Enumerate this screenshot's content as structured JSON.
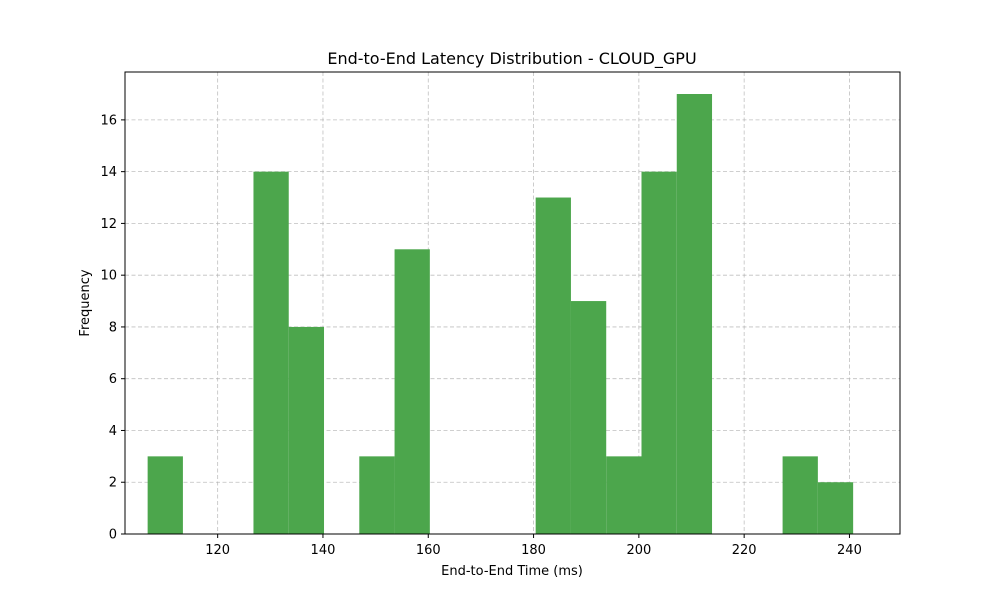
{
  "chart_data": {
    "type": "bar",
    "title": "End-to-End Latency Distribution - CLOUD_GPU",
    "xlabel": "End-to-End Time (ms)",
    "ylabel": "Frequency",
    "xlim": [
      102.4,
      249.6
    ],
    "ylim": [
      0,
      17.85
    ],
    "xticks": [
      120,
      140,
      160,
      180,
      200,
      220,
      240
    ],
    "yticks": [
      0,
      2,
      4,
      6,
      8,
      10,
      12,
      14,
      16
    ],
    "grid": true,
    "color": "#4ca64c",
    "bin_width": 6.7,
    "bins": [
      {
        "x0": 106.7,
        "count": 3
      },
      {
        "x0": 113.4,
        "count": 0
      },
      {
        "x0": 120.1,
        "count": 0
      },
      {
        "x0": 126.8,
        "count": 14
      },
      {
        "x0": 133.5,
        "count": 8
      },
      {
        "x0": 140.2,
        "count": 0
      },
      {
        "x0": 146.9,
        "count": 3
      },
      {
        "x0": 153.6,
        "count": 11
      },
      {
        "x0": 160.3,
        "count": 0
      },
      {
        "x0": 167.0,
        "count": 0
      },
      {
        "x0": 173.7,
        "count": 0
      },
      {
        "x0": 180.4,
        "count": 13
      },
      {
        "x0": 187.1,
        "count": 9
      },
      {
        "x0": 193.8,
        "count": 3
      },
      {
        "x0": 200.5,
        "count": 14
      },
      {
        "x0": 207.2,
        "count": 17
      },
      {
        "x0": 213.9,
        "count": 0
      },
      {
        "x0": 220.6,
        "count": 0
      },
      {
        "x0": 227.3,
        "count": 3
      },
      {
        "x0": 234.0,
        "count": 2
      }
    ]
  }
}
